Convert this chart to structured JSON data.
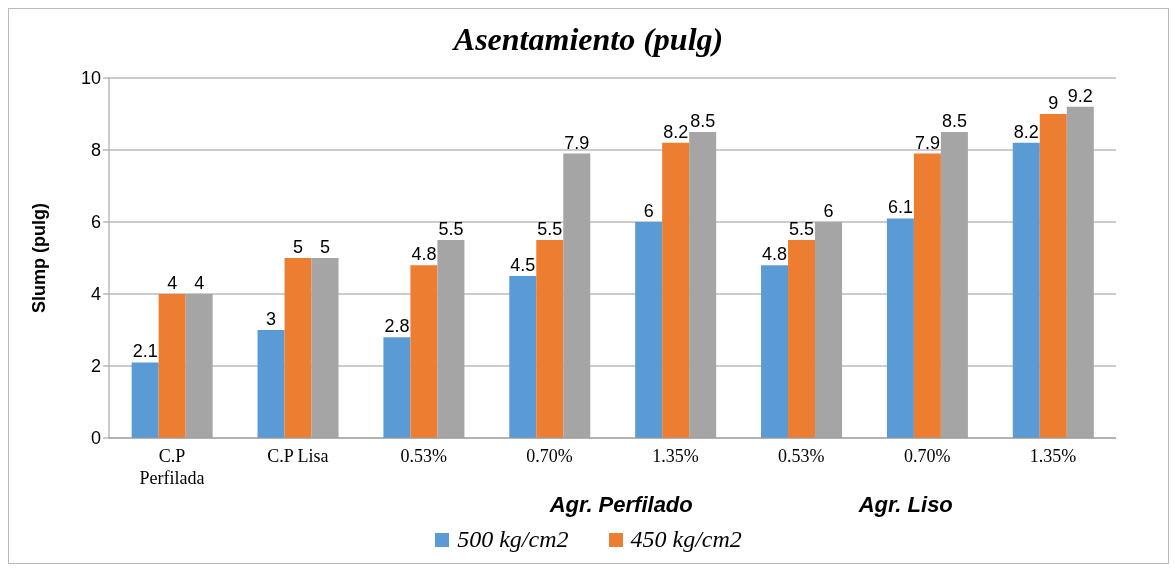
{
  "chart_data": {
    "type": "bar",
    "title": "Asentamiento (pulg)",
    "ylabel": "Slump (pulg)",
    "categories": [
      "C.P Perfilada",
      "C.P Lisa",
      "0.53%",
      "0.70%",
      "1.35%",
      "0.53%",
      "0.70%",
      "1.35%"
    ],
    "series": [
      {
        "name": "500 kg/cm2",
        "color": "#5b9bd5",
        "values": [
          2.1,
          3,
          2.8,
          4.5,
          6,
          4.8,
          6.1,
          8.2
        ]
      },
      {
        "name": "450 kg/cm2",
        "color": "#ed7d31",
        "values": [
          4,
          5,
          4.8,
          5.5,
          8.2,
          5.5,
          7.9,
          9
        ]
      },
      {
        "color": "#a5a5a5",
        "values": [
          4,
          5,
          5.5,
          7.9,
          8.5,
          6,
          8.5,
          9.2
        ]
      }
    ],
    "annotations": [
      "Agr. Perfilado",
      "Agr. Liso"
    ],
    "ylim": [
      0,
      10
    ],
    "yticks": [
      0,
      2,
      4,
      6,
      8,
      10
    ],
    "grid": "y",
    "legend": "bottom",
    "data_labels": true
  }
}
